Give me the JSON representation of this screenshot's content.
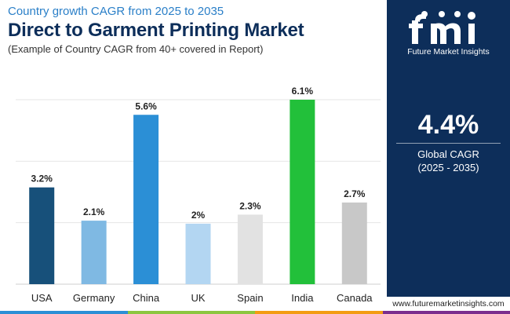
{
  "header": {
    "kicker": "Country growth CAGR from 2025 to 2035",
    "title": "Direct to Garment Printing Market",
    "subtitle": "(Example of Country CAGR from 40+ covered in Report)"
  },
  "brand": {
    "logo_letters": "fmi",
    "logo_text": "Future Market Insights",
    "website": "www.futuremarketinsights.com"
  },
  "global": {
    "value": "4.4%",
    "label": "Global CAGR",
    "period": "(2025 - 2035)"
  },
  "chart_data": {
    "type": "bar",
    "categories": [
      "USA",
      "Germany",
      "China",
      "UK",
      "Spain",
      "India",
      "Canada"
    ],
    "values": [
      3.2,
      2.1,
      5.6,
      2.0,
      2.3,
      6.1,
      2.7
    ],
    "value_labels": [
      "3.2%",
      "2.1%",
      "5.6%",
      "2%",
      "2.3%",
      "6.1%",
      "2.7%"
    ],
    "bar_colors": [
      "#17507a",
      "#7fb9e3",
      "#2b8fd6",
      "#b3d6f2",
      "#e2e2e2",
      "#22c03a",
      "#c8c8c8"
    ],
    "ylim": [
      0,
      7
    ],
    "grid": true
  },
  "colors": {
    "panel": "#0d2e5a",
    "stripe": [
      "#2b8fd6",
      "#8cc63f",
      "#f39c12",
      "#7b2d8e"
    ]
  }
}
